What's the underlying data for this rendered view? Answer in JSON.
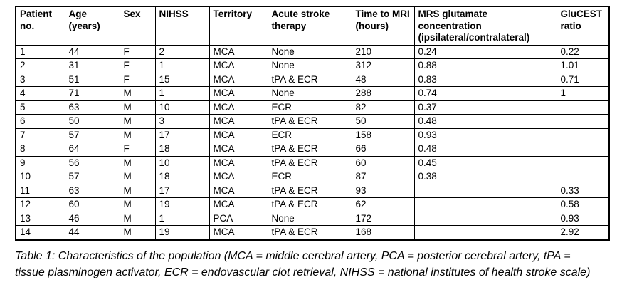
{
  "table": {
    "columns": [
      "Patient no.",
      "Age (years)",
      "Sex",
      "NIHSS",
      "Territory",
      "Acute stroke therapy",
      "Time to MRI (hours)",
      "MRS glutamate concentration (ipsilateral/contralateral)",
      "GluCEST ratio"
    ],
    "column_keys": [
      "patient-no",
      "age",
      "sex",
      "nihss",
      "territory",
      "acute-stroke-therapy",
      "time-to-mri",
      "mrs-glutamate",
      "glucest-ratio"
    ],
    "rows": [
      [
        "1",
        "44",
        "F",
        "2",
        "MCA",
        "None",
        "210",
        "0.24",
        "0.22"
      ],
      [
        "2",
        "31",
        "F",
        "1",
        "MCA",
        "None",
        "312",
        "0.88",
        "1.01"
      ],
      [
        "3",
        "51",
        "F",
        "15",
        "MCA",
        "tPA & ECR",
        "48",
        "0.83",
        "0.71"
      ],
      [
        "4",
        "71",
        "M",
        "1",
        "MCA",
        "None",
        "288",
        "0.74",
        "1"
      ],
      [
        "5",
        "63",
        "M",
        "10",
        "MCA",
        "ECR",
        "82",
        "0.37",
        ""
      ],
      [
        "6",
        "50",
        "M",
        "3",
        "MCA",
        "tPA & ECR",
        "50",
        "0.48",
        ""
      ],
      [
        "7",
        "57",
        "M",
        "17",
        "MCA",
        "ECR",
        "158",
        "0.93",
        ""
      ],
      [
        "8",
        "64",
        "F",
        "18",
        "MCA",
        "tPA & ECR",
        "66",
        "0.48",
        ""
      ],
      [
        "9",
        "56",
        "M",
        "10",
        "MCA",
        "tPA & ECR",
        "60",
        "0.45",
        ""
      ],
      [
        "10",
        "57",
        "M",
        "18",
        "MCA",
        "ECR",
        "87",
        "0.38",
        ""
      ],
      [
        "11",
        "63",
        "M",
        "17",
        "MCA",
        "tPA & ECR",
        "93",
        "",
        "0.33"
      ],
      [
        "12",
        "60",
        "M",
        "19",
        "MCA",
        "tPA & ECR",
        "62",
        "",
        "0.58"
      ],
      [
        "13",
        "46",
        "M",
        "1",
        "PCA",
        "None",
        "172",
        "",
        "0.93"
      ],
      [
        "14",
        "44",
        "M",
        "19",
        "MCA",
        "tPA & ECR",
        "168",
        "",
        "2.92"
      ]
    ]
  },
  "caption": "Table 1: Characteristics of the population (MCA = middle cerebral artery, PCA = posterior cerebral artery, tPA = tissue plasminogen activator, ECR = endovascular clot retrieval, NIHSS = national institutes of health stroke scale)",
  "colors": {
    "text": "#000000",
    "border": "#000000",
    "background": "#ffffff"
  }
}
